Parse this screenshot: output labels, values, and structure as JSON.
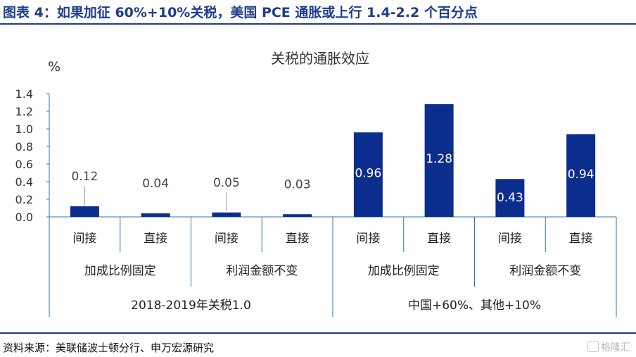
{
  "header": {
    "title": "图表 4：如果加征 60%+10%关税，美国 PCE 通胀或上行 1.4-2.2 个百分点"
  },
  "footer": {
    "source": "资料来源：美联储波士顿分行、申万宏源研究",
    "watermark": "格隆汇"
  },
  "chart_data": {
    "type": "bar",
    "title": "关税的通胀效应",
    "ylabel": "%",
    "ylim": [
      0,
      1.4
    ],
    "yticks": [
      "0.0",
      "0.2",
      "0.4",
      "0.6",
      "0.8",
      "1.0",
      "1.2",
      "1.4"
    ],
    "grid": false,
    "legend": "none",
    "categories": [
      "间接",
      "直接",
      "间接",
      "直接",
      "间接",
      "直接",
      "间接",
      "直接"
    ],
    "values": [
      0.12,
      0.04,
      0.05,
      0.03,
      0.96,
      1.28,
      0.43,
      0.94
    ],
    "value_labels": [
      "0.12",
      "0.04",
      "0.05",
      "0.03",
      "0.96",
      "1.28",
      "0.43",
      "0.94"
    ],
    "group_level_1": [
      {
        "label": "加成比例固定",
        "span": 2
      },
      {
        "label": "利润金额不变",
        "span": 2
      },
      {
        "label": "加成比例固定",
        "span": 2
      },
      {
        "label": "利润金额不变",
        "span": 2
      }
    ],
    "group_level_2": [
      {
        "label": "2018-2019年关税1.0",
        "span": 4
      },
      {
        "label": "中国+60%、其他+10%",
        "span": 4
      }
    ],
    "colors": {
      "bar": "#0b2d8e",
      "axis": "#2e75b6",
      "label_outside": "#444444",
      "label_inside": "#ffffff"
    }
  }
}
